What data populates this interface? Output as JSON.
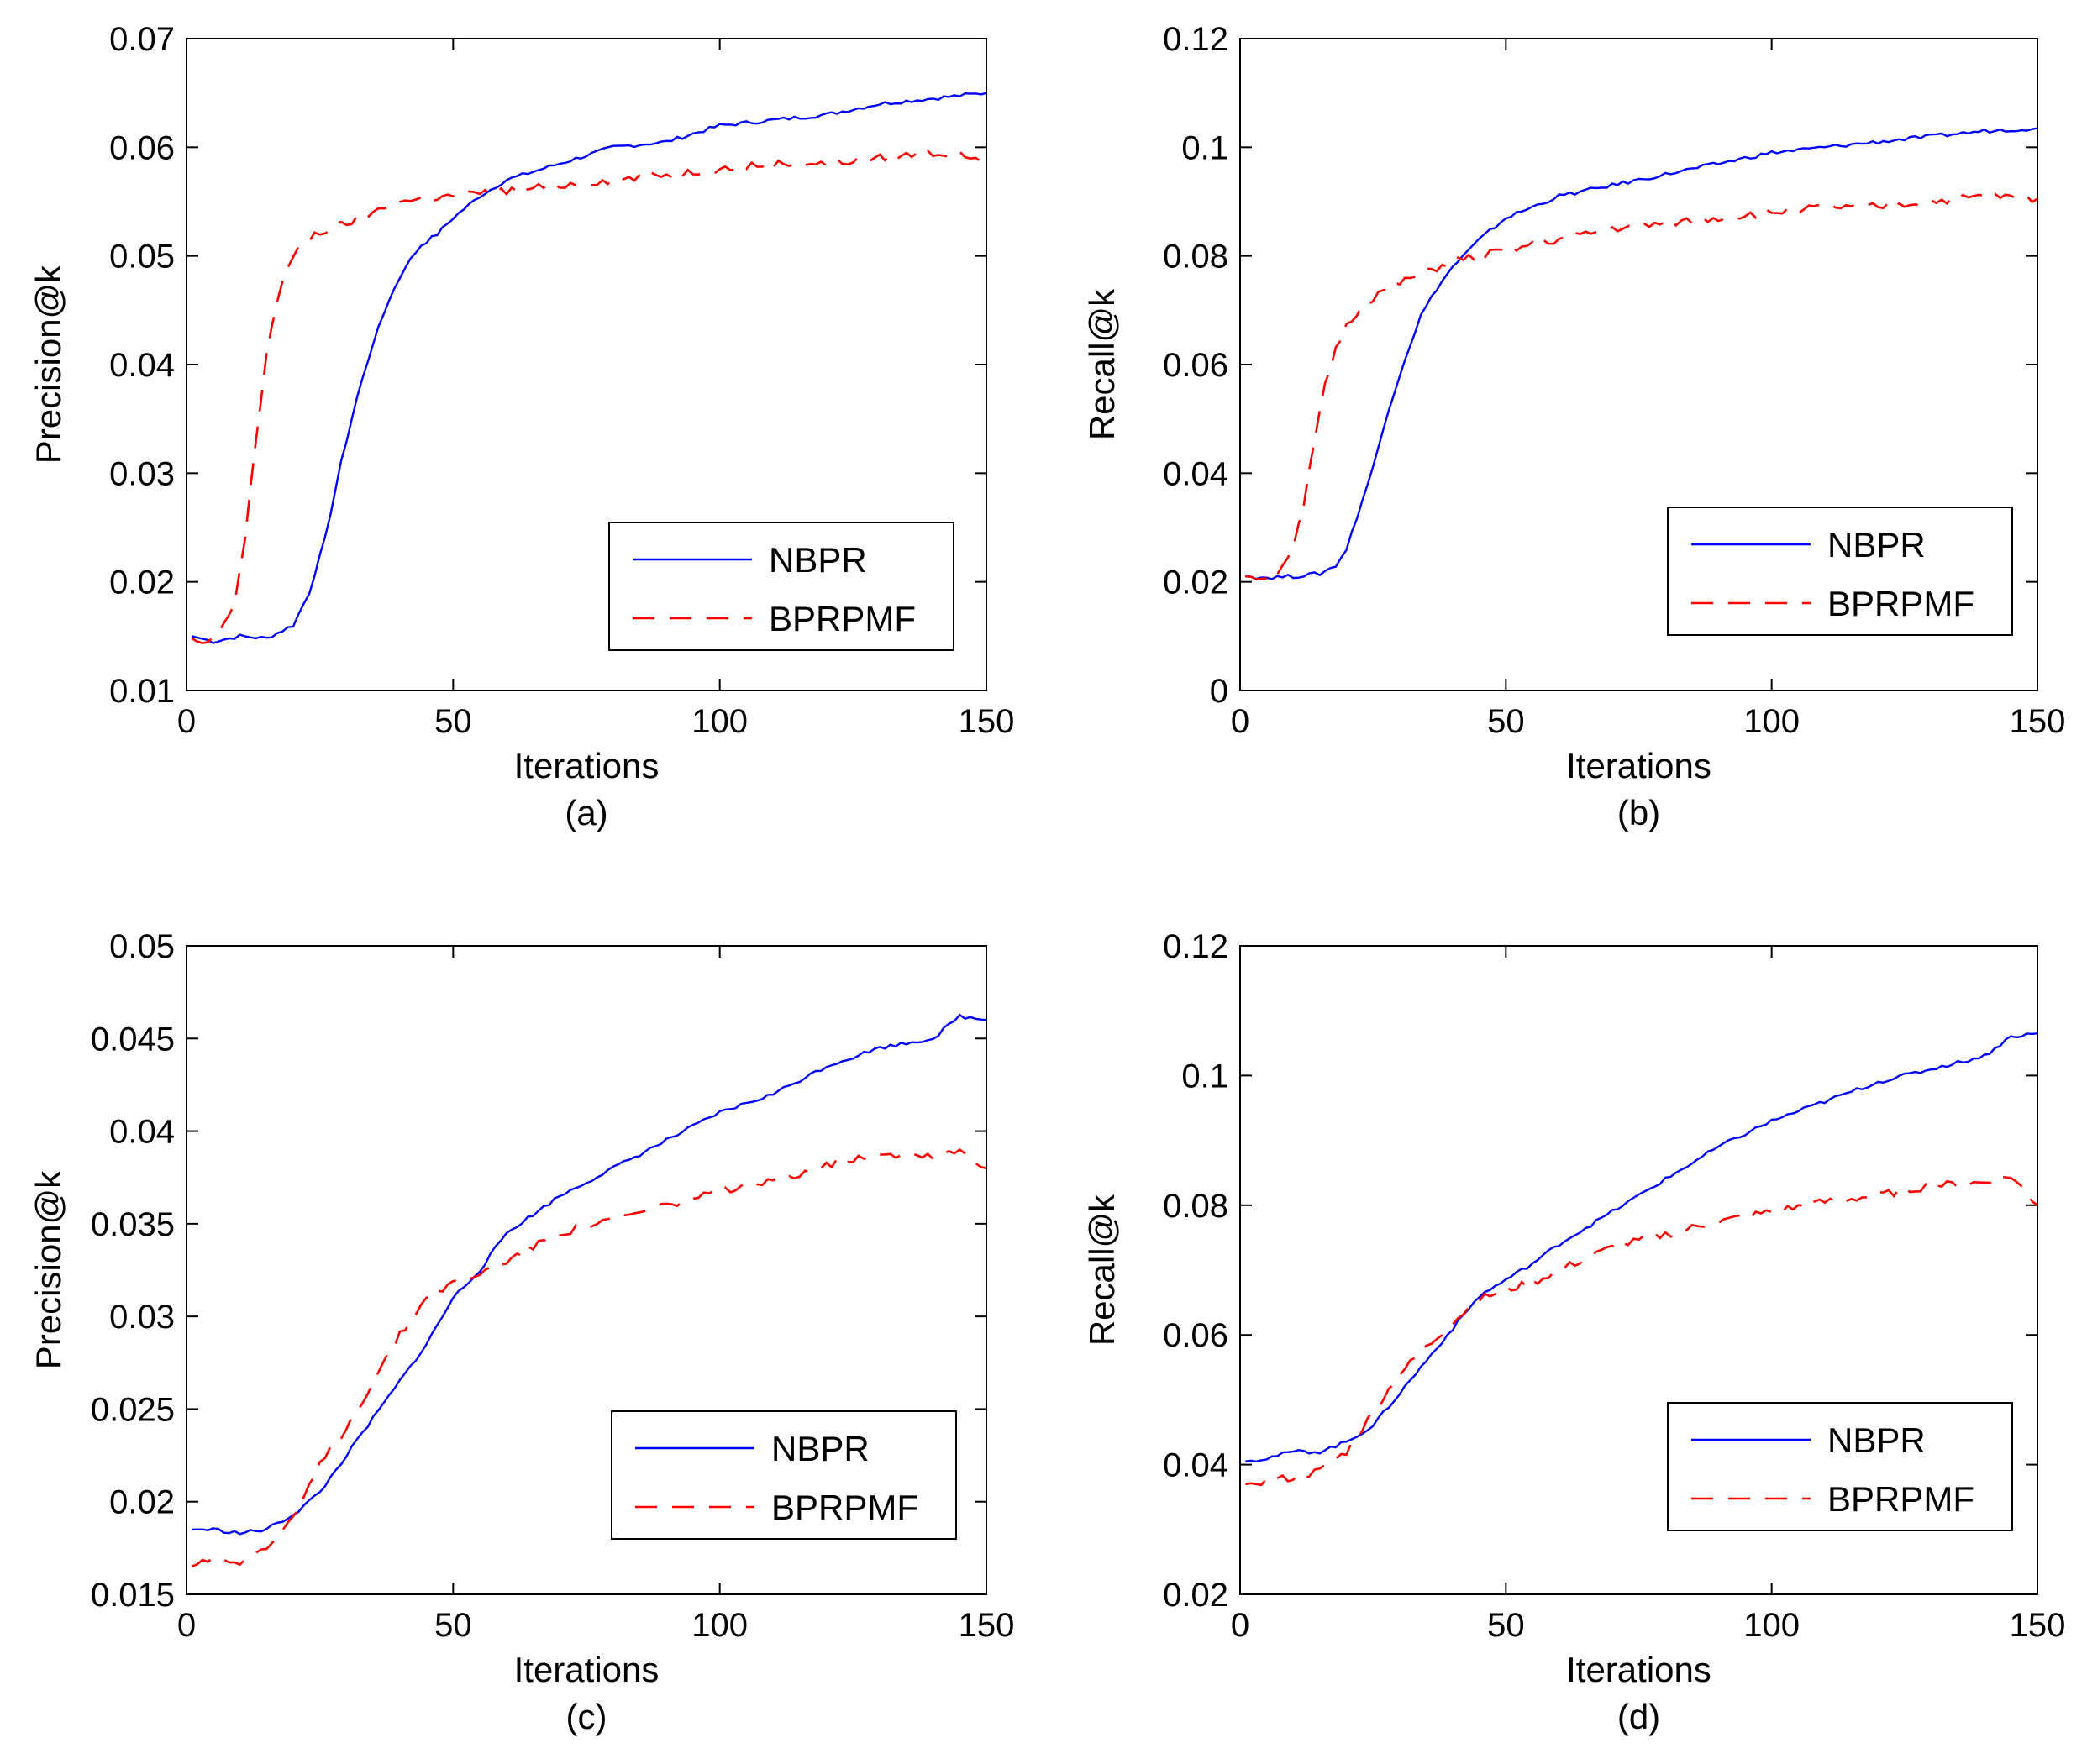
{
  "chart_data": [
    {
      "type": "line",
      "caption": "(a)",
      "xlabel": "Iterations",
      "ylabel": "Precision@k",
      "xlim": [
        0,
        150
      ],
      "ylim": [
        0.01,
        0.07
      ],
      "xticks": [
        0,
        50,
        100,
        150
      ],
      "yticks": [
        0.01,
        0.02,
        0.03,
        0.04,
        0.05,
        0.06,
        0.07
      ],
      "xtick_labels": [
        "0",
        "50",
        "100",
        "150"
      ],
      "ytick_labels": [
        "0.01",
        "0.02",
        "0.03",
        "0.04",
        "0.05",
        "0.06",
        "0.07"
      ],
      "legend_position": "lower-right",
      "series": [
        {
          "name": "NBPR",
          "style": "solid",
          "color": "#0000ff",
          "x": [
            1,
            5,
            10,
            15,
            20,
            23,
            26,
            29,
            32,
            35,
            38,
            41,
            44,
            47,
            50,
            55,
            60,
            70,
            80,
            90,
            100,
            110,
            120,
            130,
            140,
            150
          ],
          "y": [
            0.015,
            0.0145,
            0.015,
            0.0148,
            0.016,
            0.019,
            0.024,
            0.031,
            0.037,
            0.042,
            0.046,
            0.049,
            0.051,
            0.052,
            0.0535,
            0.0555,
            0.057,
            0.0585,
            0.06,
            0.0605,
            0.062,
            0.0625,
            0.063,
            0.064,
            0.0645,
            0.065
          ]
        },
        {
          "name": "BPRPMF",
          "style": "dashed",
          "color": "#ff0000",
          "x": [
            1,
            3,
            6,
            9,
            11,
            13,
            15,
            17,
            19,
            21,
            24,
            27,
            30,
            35,
            40,
            50,
            60,
            70,
            80,
            90,
            100,
            110,
            120,
            130,
            140,
            150
          ],
          "y": [
            0.0148,
            0.0142,
            0.015,
            0.018,
            0.024,
            0.033,
            0.041,
            0.046,
            0.049,
            0.0505,
            0.052,
            0.0525,
            0.053,
            0.054,
            0.055,
            0.0555,
            0.056,
            0.0565,
            0.057,
            0.0575,
            0.058,
            0.0585,
            0.0585,
            0.059,
            0.0595,
            0.059
          ]
        }
      ]
    },
    {
      "type": "line",
      "caption": "(b)",
      "xlabel": "Iterations",
      "ylabel": "Recall@k",
      "xlim": [
        0,
        150
      ],
      "ylim": [
        0,
        0.12
      ],
      "xticks": [
        0,
        50,
        100,
        150
      ],
      "yticks": [
        0,
        0.02,
        0.04,
        0.06,
        0.08,
        0.1,
        0.12
      ],
      "xtick_labels": [
        "0",
        "50",
        "100",
        "150"
      ],
      "ytick_labels": [
        "0",
        "0.02",
        "0.04",
        "0.06",
        "0.08",
        "0.1",
        "0.12"
      ],
      "legend_position": "lower-right",
      "series": [
        {
          "name": "NBPR",
          "style": "solid",
          "color": "#0000ff",
          "x": [
            1,
            5,
            10,
            15,
            18,
            20,
            22,
            25,
            28,
            31,
            34,
            37,
            40,
            45,
            50,
            55,
            60,
            70,
            80,
            90,
            100,
            110,
            120,
            130,
            140,
            150
          ],
          "y": [
            0.021,
            0.0208,
            0.021,
            0.0215,
            0.023,
            0.026,
            0.032,
            0.041,
            0.052,
            0.061,
            0.069,
            0.074,
            0.078,
            0.083,
            0.087,
            0.089,
            0.091,
            0.093,
            0.095,
            0.097,
            0.099,
            0.1,
            0.101,
            0.102,
            0.103,
            0.1035
          ]
        },
        {
          "name": "BPRPMF",
          "style": "dashed",
          "color": "#ff0000",
          "x": [
            1,
            4,
            7,
            10,
            12,
            14,
            16,
            18,
            20,
            23,
            26,
            30,
            35,
            40,
            50,
            60,
            70,
            80,
            90,
            100,
            110,
            120,
            130,
            140,
            150
          ],
          "y": [
            0.021,
            0.0208,
            0.022,
            0.026,
            0.034,
            0.046,
            0.056,
            0.063,
            0.067,
            0.071,
            0.073,
            0.075,
            0.077,
            0.079,
            0.081,
            0.083,
            0.085,
            0.086,
            0.087,
            0.088,
            0.089,
            0.089,
            0.09,
            0.091,
            0.0905
          ]
        }
      ]
    },
    {
      "type": "line",
      "caption": "(c)",
      "xlabel": "Iterations",
      "ylabel": "Precision@k",
      "xlim": [
        0,
        150
      ],
      "ylim": [
        0.015,
        0.05
      ],
      "xticks": [
        0,
        50,
        100,
        150
      ],
      "yticks": [
        0.015,
        0.02,
        0.025,
        0.03,
        0.035,
        0.04,
        0.045,
        0.05
      ],
      "xtick_labels": [
        "0",
        "50",
        "100",
        "150"
      ],
      "ytick_labels": [
        "0.015",
        "0.02",
        "0.025",
        "0.03",
        "0.035",
        "0.04",
        "0.045",
        "0.05"
      ],
      "legend_position": "lower-right",
      "series": [
        {
          "name": "NBPR",
          "style": "solid",
          "color": "#0000ff",
          "x": [
            1,
            5,
            10,
            15,
            20,
            25,
            30,
            35,
            40,
            45,
            50,
            55,
            60,
            70,
            80,
            90,
            100,
            110,
            120,
            130,
            140,
            145,
            150
          ],
          "y": [
            0.0185,
            0.0185,
            0.0183,
            0.0185,
            0.0193,
            0.0205,
            0.0225,
            0.0245,
            0.0265,
            0.0285,
            0.031,
            0.0325,
            0.0345,
            0.0365,
            0.038,
            0.0395,
            0.041,
            0.042,
            0.0435,
            0.0445,
            0.045,
            0.0462,
            0.046
          ]
        },
        {
          "name": "BPRPMF",
          "style": "dashed",
          "color": "#ff0000",
          "x": [
            1,
            5,
            10,
            15,
            20,
            25,
            30,
            35,
            40,
            45,
            50,
            55,
            60,
            70,
            80,
            90,
            100,
            110,
            120,
            130,
            140,
            145,
            150
          ],
          "y": [
            0.0165,
            0.017,
            0.0168,
            0.0175,
            0.019,
            0.022,
            0.024,
            0.0265,
            0.029,
            0.031,
            0.0318,
            0.0323,
            0.033,
            0.0345,
            0.0352,
            0.036,
            0.0367,
            0.0373,
            0.0382,
            0.0388,
            0.0387,
            0.039,
            0.038
          ]
        }
      ]
    },
    {
      "type": "line",
      "caption": "(d)",
      "xlabel": "Iterations",
      "ylabel": "Recall@k",
      "xlim": [
        0,
        150
      ],
      "ylim": [
        0.02,
        0.12
      ],
      "xticks": [
        0,
        50,
        100,
        150
      ],
      "yticks": [
        0.02,
        0.04,
        0.06,
        0.08,
        0.1,
        0.12
      ],
      "xtick_labels": [
        "0",
        "50",
        "100",
        "150"
      ],
      "ytick_labels": [
        "0.02",
        "0.04",
        "0.06",
        "0.08",
        "0.1",
        "0.12"
      ],
      "legend_position": "lower-right",
      "series": [
        {
          "name": "NBPR",
          "style": "solid",
          "color": "#0000ff",
          "x": [
            1,
            5,
            10,
            15,
            20,
            25,
            30,
            35,
            40,
            45,
            50,
            55,
            60,
            70,
            80,
            90,
            100,
            110,
            120,
            130,
            140,
            145,
            150
          ],
          "y": [
            0.0405,
            0.041,
            0.042,
            0.042,
            0.0435,
            0.046,
            0.051,
            0.056,
            0.061,
            0.066,
            0.0685,
            0.071,
            0.074,
            0.079,
            0.084,
            0.089,
            0.093,
            0.096,
            0.099,
            0.101,
            0.103,
            0.106,
            0.1065
          ]
        },
        {
          "name": "BPRPMF",
          "style": "dashed",
          "color": "#ff0000",
          "x": [
            1,
            5,
            10,
            15,
            20,
            25,
            30,
            35,
            40,
            45,
            50,
            55,
            60,
            70,
            80,
            90,
            100,
            110,
            120,
            130,
            140,
            145,
            150
          ],
          "y": [
            0.037,
            0.0375,
            0.038,
            0.039,
            0.042,
            0.048,
            0.054,
            0.058,
            0.062,
            0.0655,
            0.067,
            0.068,
            0.07,
            0.0735,
            0.0755,
            0.0775,
            0.079,
            0.0805,
            0.0815,
            0.083,
            0.0835,
            0.0845,
            0.08
          ]
        }
      ]
    }
  ]
}
